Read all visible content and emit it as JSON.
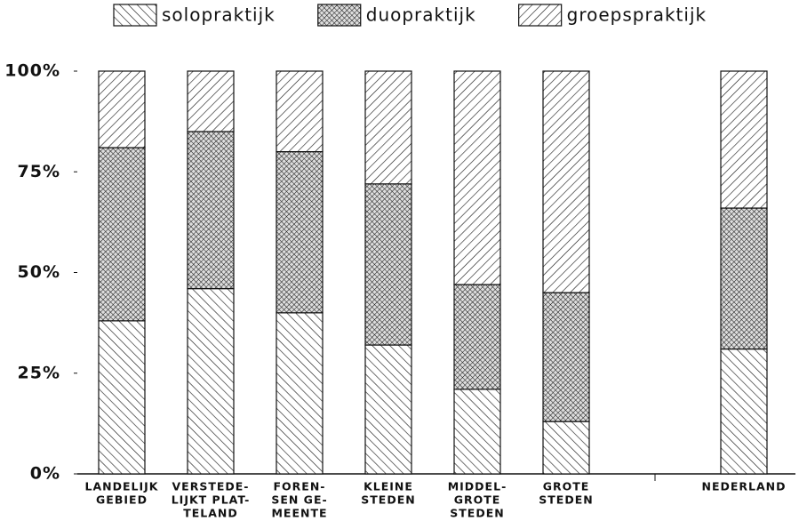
{
  "chart_data": {
    "type": "stacked_bar",
    "categories": [
      [
        "LANDELIJK",
        "GEBIED"
      ],
      [
        "VERSTEDE-",
        "LIJKT PLAT-",
        "TELAND"
      ],
      [
        "FOREN-",
        "SEN GE-",
        "MEENTE"
      ],
      [
        "KLEINE",
        "STEDEN"
      ],
      [
        "MIDDEL-",
        "GROTE",
        "STEDEN"
      ],
      [
        "GROTE",
        "STEDEN"
      ],
      null,
      [
        "NEDERLAND"
      ]
    ],
    "series": [
      {
        "name": "solopraktijk",
        "color": "#111111",
        "pattern": "backslash",
        "values": [
          38,
          46,
          40,
          32,
          21,
          13,
          null,
          31
        ]
      },
      {
        "name": "duopraktijk",
        "color": "#111111",
        "pattern": "crosshatch",
        "values": [
          43,
          39,
          40,
          40,
          26,
          32,
          null,
          35
        ]
      },
      {
        "name": "groepspraktijk",
        "color": "#111111",
        "pattern": "slash",
        "values": [
          19,
          15,
          20,
          28,
          53,
          55,
          null,
          34
        ]
      }
    ],
    "ylim": [
      0,
      100
    ],
    "yticks": [
      {
        "value": 0,
        "label": "0%"
      },
      {
        "value": 25,
        "label": "25%"
      },
      {
        "value": 50,
        "label": "50%"
      },
      {
        "value": 75,
        "label": "75%"
      },
      {
        "value": 100,
        "label": "100%"
      }
    ],
    "legend": "top"
  }
}
